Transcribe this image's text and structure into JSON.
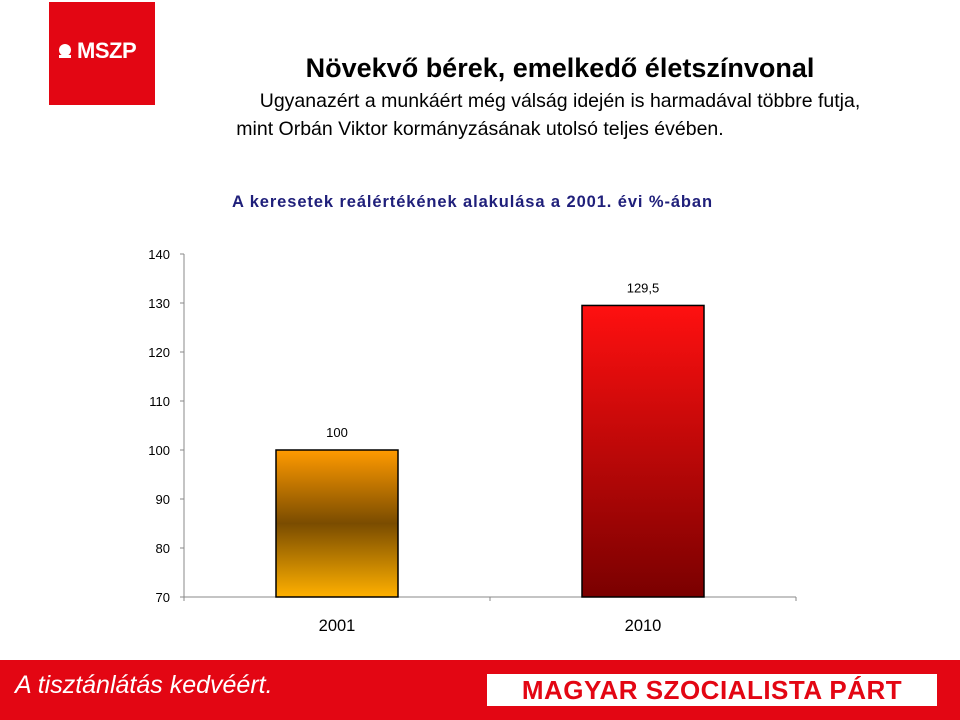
{
  "logo": {
    "text": "MSZP"
  },
  "header": {
    "title": "Növekvő bérek, emelkedő életszínvonal",
    "subtitle_line1": "Ugyanazért a munkáért  még válság idején is harmadával többre futja,",
    "subtitle_line2": "mint Orbán Viktor kormányzásának utolsó teljes évében."
  },
  "chart_data": {
    "type": "bar",
    "title": "A keresetek reálértékének alakulása a 2001. évi %-ában",
    "categories": [
      "2001",
      "2010"
    ],
    "values": [
      100,
      129.5
    ],
    "data_labels": [
      "100",
      "129,5"
    ],
    "ylim": [
      70,
      140
    ],
    "yticks": [
      70,
      80,
      90,
      100,
      110,
      120,
      130,
      140
    ],
    "xlabel": "",
    "ylabel": "",
    "grid": false,
    "legend": "none",
    "colors": {
      "bar_2001": [
        "#ff9a00",
        "#7a4c00",
        "#ffb000"
      ],
      "bar_2010": [
        "#ff1010",
        "#7a0000"
      ]
    }
  },
  "footer": {
    "slogan": "A tisztánlátás kedvéért.",
    "party": "MAGYAR SZOCIALISTA PÁRT",
    "background": "#e30613"
  }
}
